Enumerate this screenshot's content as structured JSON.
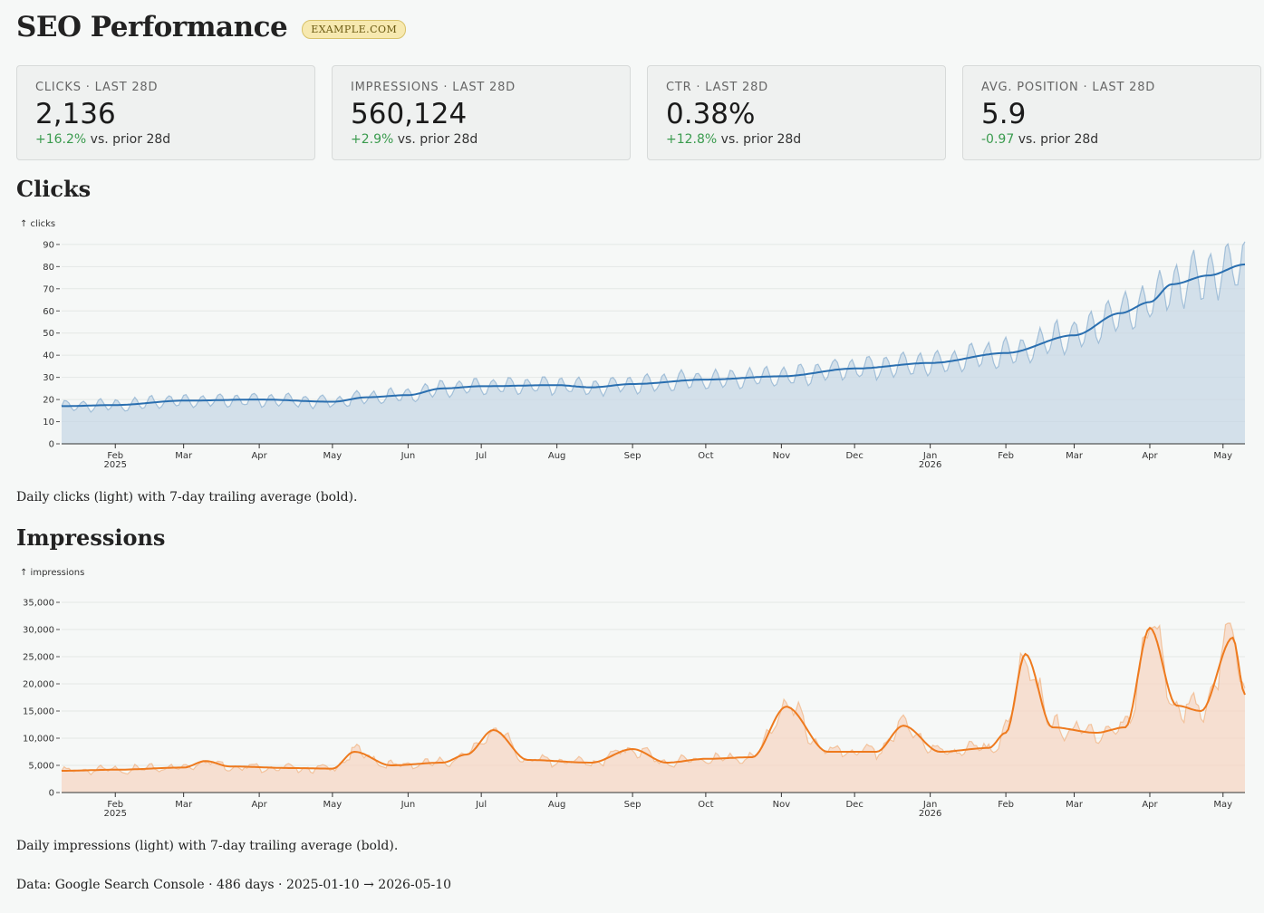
{
  "header": {
    "title": "SEO Performance",
    "site_badge": "EXAMPLE.COM"
  },
  "cards": [
    {
      "label": "CLICKS · LAST 28D",
      "value": "2,136",
      "delta": "+16.2%",
      "delta_suffix": "vs. prior 28d"
    },
    {
      "label": "IMPRESSIONS · LAST 28D",
      "value": "560,124",
      "delta": "+2.9%",
      "delta_suffix": "vs. prior 28d"
    },
    {
      "label": "CTR · LAST 28D",
      "value": "0.38%",
      "delta": "+12.8%",
      "delta_suffix": "vs. prior 28d"
    },
    {
      "label": "AVG. POSITION · LAST 28D",
      "value": "5.9",
      "delta": "-0.97",
      "delta_suffix": "vs. prior 28d"
    }
  ],
  "clicks_section": {
    "title": "Clicks",
    "caption": "Daily clicks (light) with 7-day trailing average (bold)."
  },
  "impressions_section": {
    "title": "Impressions",
    "caption": "Daily impressions (light) with 7-day trailing average (bold)."
  },
  "footer": {
    "source": "Data: Google Search Console · 486 days · 2025-01-10 → 2026-05-10"
  },
  "colors": {
    "delta_positive": "#3a9b4e",
    "clicks_line": "#2a6fb0",
    "clicks_fill": "#c5d5e4",
    "impressions_line": "#ee7a1e",
    "impressions_fill": "#f6d4c0"
  },
  "chart_data": [
    {
      "type": "area",
      "ylabel": "↑ clicks",
      "ylim": [
        0,
        92
      ],
      "yticks": [
        0,
        10,
        20,
        30,
        40,
        50,
        60,
        70,
        80,
        90
      ],
      "xlim": [
        "2025-01-10",
        "2026-05-10"
      ],
      "xticks": [
        {
          "date": "2025-02-01",
          "label": "Feb",
          "year": "2025"
        },
        {
          "date": "2025-03-01",
          "label": "Mar"
        },
        {
          "date": "2025-04-01",
          "label": "Apr"
        },
        {
          "date": "2025-05-01",
          "label": "May"
        },
        {
          "date": "2025-06-01",
          "label": "Jun"
        },
        {
          "date": "2025-07-01",
          "label": "Jul"
        },
        {
          "date": "2025-08-01",
          "label": "Aug"
        },
        {
          "date": "2025-09-01",
          "label": "Sep"
        },
        {
          "date": "2025-10-01",
          "label": "Oct"
        },
        {
          "date": "2025-11-01",
          "label": "Nov"
        },
        {
          "date": "2025-12-01",
          "label": "Dec"
        },
        {
          "date": "2026-01-01",
          "label": "Jan",
          "year": "2026"
        },
        {
          "date": "2026-02-01",
          "label": "Feb"
        },
        {
          "date": "2026-03-01",
          "label": "Mar"
        },
        {
          "date": "2026-04-01",
          "label": "Apr"
        },
        {
          "date": "2026-05-01",
          "label": "May"
        }
      ],
      "series": [
        {
          "values": [
            {
              "x": "2025-01-10",
              "y": 17
            },
            {
              "x": "2025-02-01",
              "y": 17.5
            },
            {
              "x": "2025-03-01",
              "y": 19.5
            },
            {
              "x": "2025-04-01",
              "y": 20
            },
            {
              "x": "2025-05-01",
              "y": 19
            },
            {
              "x": "2025-05-15",
              "y": 21
            },
            {
              "x": "2025-06-01",
              "y": 22
            },
            {
              "x": "2025-06-15",
              "y": 25
            },
            {
              "x": "2025-07-01",
              "y": 26
            },
            {
              "x": "2025-08-01",
              "y": 26.5
            },
            {
              "x": "2025-08-15",
              "y": 25.5
            },
            {
              "x": "2025-09-01",
              "y": 27
            },
            {
              "x": "2025-10-01",
              "y": 29
            },
            {
              "x": "2025-11-01",
              "y": 30.5
            },
            {
              "x": "2025-12-01",
              "y": 34
            },
            {
              "x": "2026-01-01",
              "y": 36.5
            },
            {
              "x": "2026-02-01",
              "y": 41
            },
            {
              "x": "2026-03-01",
              "y": 49
            },
            {
              "x": "2026-03-20",
              "y": 59
            },
            {
              "x": "2026-04-01",
              "y": 64
            },
            {
              "x": "2026-04-10",
              "y": 72
            },
            {
              "x": "2026-04-25",
              "y": 76
            },
            {
              "x": "2026-05-10",
              "y": 81
            }
          ]
        }
      ]
    },
    {
      "type": "area",
      "ylabel": "↑ impressions",
      "ylim": [
        0,
        37500
      ],
      "yticks": [
        0,
        5000,
        10000,
        15000,
        20000,
        25000,
        30000,
        35000
      ],
      "ytick_labels": [
        "0",
        "5,000",
        "10,000",
        "15,000",
        "20,000",
        "25,000",
        "30,000",
        "35,000"
      ],
      "xlim": [
        "2025-01-10",
        "2026-05-10"
      ],
      "xticks": [
        {
          "date": "2025-02-01",
          "label": "Feb",
          "year": "2025"
        },
        {
          "date": "2025-03-01",
          "label": "Mar"
        },
        {
          "date": "2025-04-01",
          "label": "Apr"
        },
        {
          "date": "2025-05-01",
          "label": "May"
        },
        {
          "date": "2025-06-01",
          "label": "Jun"
        },
        {
          "date": "2025-07-01",
          "label": "Jul"
        },
        {
          "date": "2025-08-01",
          "label": "Aug"
        },
        {
          "date": "2025-09-01",
          "label": "Sep"
        },
        {
          "date": "2025-10-01",
          "label": "Oct"
        },
        {
          "date": "2025-11-01",
          "label": "Nov"
        },
        {
          "date": "2025-12-01",
          "label": "Dec"
        },
        {
          "date": "2026-01-01",
          "label": "Jan",
          "year": "2026"
        },
        {
          "date": "2026-02-01",
          "label": "Feb"
        },
        {
          "date": "2026-03-01",
          "label": "Mar"
        },
        {
          "date": "2026-04-01",
          "label": "Apr"
        },
        {
          "date": "2026-05-01",
          "label": "May"
        }
      ],
      "series": [
        {
          "values": [
            {
              "x": "2025-01-10",
              "y": 4000
            },
            {
              "x": "2025-02-01",
              "y": 4200
            },
            {
              "x": "2025-03-01",
              "y": 4600
            },
            {
              "x": "2025-03-10",
              "y": 5800
            },
            {
              "x": "2025-03-20",
              "y": 4800
            },
            {
              "x": "2025-04-15",
              "y": 4500
            },
            {
              "x": "2025-05-01",
              "y": 4400
            },
            {
              "x": "2025-05-10",
              "y": 7500
            },
            {
              "x": "2025-05-25",
              "y": 5000
            },
            {
              "x": "2025-06-15",
              "y": 5500
            },
            {
              "x": "2025-06-25",
              "y": 7000
            },
            {
              "x": "2025-07-06",
              "y": 11500
            },
            {
              "x": "2025-07-20",
              "y": 6000
            },
            {
              "x": "2025-08-15",
              "y": 5500
            },
            {
              "x": "2025-09-01",
              "y": 8000
            },
            {
              "x": "2025-09-15",
              "y": 5500
            },
            {
              "x": "2025-10-01",
              "y": 6200
            },
            {
              "x": "2025-10-20",
              "y": 6500
            },
            {
              "x": "2025-11-03",
              "y": 15800
            },
            {
              "x": "2025-11-20",
              "y": 7500
            },
            {
              "x": "2025-12-10",
              "y": 7500
            },
            {
              "x": "2025-12-21",
              "y": 12300
            },
            {
              "x": "2026-01-05",
              "y": 7500
            },
            {
              "x": "2026-01-25",
              "y": 8200
            },
            {
              "x": "2026-02-01",
              "y": 11000
            },
            {
              "x": "2026-02-09",
              "y": 25500
            },
            {
              "x": "2026-02-20",
              "y": 12000
            },
            {
              "x": "2026-03-10",
              "y": 11000
            },
            {
              "x": "2026-03-22",
              "y": 12000
            },
            {
              "x": "2026-04-01",
              "y": 30300
            },
            {
              "x": "2026-04-12",
              "y": 16000
            },
            {
              "x": "2026-04-22",
              "y": 15000
            },
            {
              "x": "2026-05-05",
              "y": 28500
            },
            {
              "x": "2026-05-10",
              "y": 18000
            }
          ]
        }
      ]
    }
  ]
}
